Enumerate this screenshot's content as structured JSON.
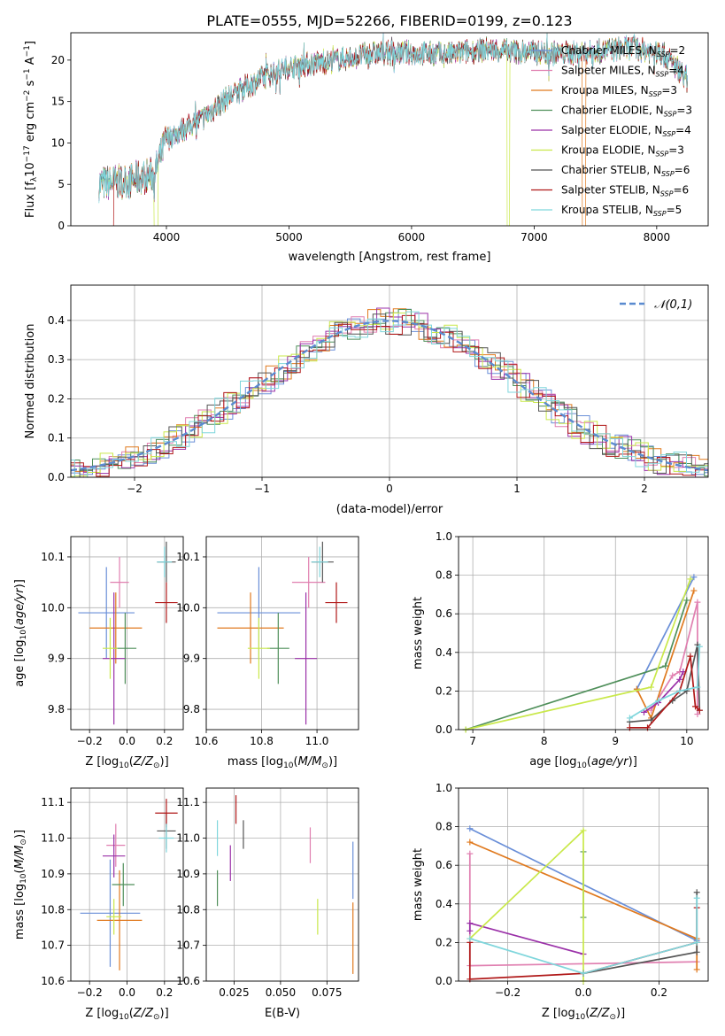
{
  "figure": {
    "title": "PLATE=0555, MJD=52266, FIBERID=0199, z=0.123"
  },
  "models": [
    {
      "name": "Chabrier MILES",
      "nssp": 2,
      "color": "#6a8fd8"
    },
    {
      "name": "Salpeter MILES",
      "nssp": 4,
      "color": "#e07fb0"
    },
    {
      "name": "Kroupa MILES",
      "nssp": 3,
      "color": "#e07a1f"
    },
    {
      "name": "Chabrier ELODIE",
      "nssp": 3,
      "color": "#4f8f5a"
    },
    {
      "name": "Salpeter ELODIE",
      "nssp": 4,
      "color": "#9a30a8"
    },
    {
      "name": "Kroupa ELODIE",
      "nssp": 3,
      "color": "#c9e84a"
    },
    {
      "name": "Chabrier STELIB",
      "nssp": 6,
      "color": "#555555"
    },
    {
      "name": "Salpeter STELIB",
      "nssp": 6,
      "color": "#b01818"
    },
    {
      "name": "Kroupa STELIB",
      "nssp": 5,
      "color": "#7fd6dc"
    }
  ],
  "chart_data": [
    {
      "type": "line",
      "xlabel": "wavelength [Angstrom, rest frame]",
      "ylabel": "Flux [f_λ 10^-17 erg cm^-2 s^-1 A^-1]",
      "xlim": [
        3220,
        8420
      ],
      "ylim": [
        0,
        23.3
      ],
      "xticks": [
        4000,
        5000,
        6000,
        7000,
        8000
      ],
      "yticks": [
        0,
        5,
        10,
        15,
        20
      ],
      "spectrum_start": 3450,
      "spectrum_end": 8250,
      "spectrum_knots": {
        "x": [
          3450,
          3700,
          3900,
          4000,
          4300,
          4500,
          4800,
          5000,
          5300,
          5700,
          6000,
          6300,
          6600,
          6900,
          7200,
          7500,
          7800,
          8050,
          8250
        ],
        "y": [
          5.0,
          5.5,
          6.2,
          10.5,
          13.0,
          15.5,
          18.0,
          19.2,
          19.8,
          20.8,
          20.9,
          20.7,
          21.3,
          21.0,
          20.8,
          21.0,
          21.5,
          20.8,
          17.8
        ]
      },
      "model_dropouts": [
        {
          "model": "Salpeter STELIB",
          "x": [
            3430,
            3570
          ]
        },
        {
          "model": "Kroupa ELODIE",
          "x": [
            3900,
            3930
          ]
        },
        {
          "model": "Kroupa ELODIE",
          "x": [
            6780,
            6800
          ]
        },
        {
          "model": "Kroupa MILES",
          "x": [
            7390,
            7420
          ]
        }
      ],
      "legend_loc": "upper right",
      "grid": false
    },
    {
      "type": "line",
      "xlabel": "(data-model)/error",
      "ylabel": "Normed distribution",
      "xlim": [
        -2.5,
        2.5
      ],
      "ylim": [
        0,
        0.49
      ],
      "xticks": [
        -2,
        -1,
        0,
        1,
        2
      ],
      "yticks": [
        0.0,
        0.1,
        0.2,
        0.3,
        0.4
      ],
      "histogram_bin_width": 0.1,
      "reference_curve": "𝒩(0,1)",
      "reference_color": "#5b8bd0",
      "legend_loc": "upper right",
      "grid": true
    },
    {
      "type": "scatter",
      "xlabel": "Z [log10(Z/Z⊙)]",
      "ylabel": "age [log10(age/yr)]",
      "xlim": [
        -0.3,
        0.3
      ],
      "ylim": [
        9.76,
        10.14
      ],
      "xticks": [
        -0.2,
        0.0,
        0.2
      ],
      "yticks": [
        9.8,
        9.9,
        10.0,
        10.1
      ],
      "points": [
        {
          "model": "Chabrier MILES",
          "x": -0.11,
          "xerr": 0.15,
          "y": 9.99,
          "yerr": 0.09
        },
        {
          "model": "Salpeter MILES",
          "x": -0.04,
          "xerr": 0.05,
          "y": 10.05,
          "yerr": 0.05
        },
        {
          "model": "Kroupa MILES",
          "x": -0.06,
          "xerr": 0.14,
          "y": 9.96,
          "yerr": 0.07
        },
        {
          "model": "Chabrier ELODIE",
          "x": -0.01,
          "xerr": 0.06,
          "y": 9.92,
          "yerr": 0.07
        },
        {
          "model": "Salpeter ELODIE",
          "x": -0.07,
          "xerr": 0.06,
          "y": 9.9,
          "yerr": 0.13
        },
        {
          "model": "Kroupa ELODIE",
          "x": -0.09,
          "xerr": 0.04,
          "y": 9.92,
          "yerr": 0.06
        },
        {
          "model": "Chabrier STELIB",
          "x": 0.21,
          "xerr": 0.05,
          "y": 10.09,
          "yerr": 0.04
        },
        {
          "model": "Salpeter STELIB",
          "x": 0.21,
          "xerr": 0.06,
          "y": 10.01,
          "yerr": 0.04
        },
        {
          "model": "Kroupa STELIB",
          "x": 0.2,
          "xerr": 0.04,
          "y": 10.09,
          "yerr": 0.03
        }
      ],
      "grid": true
    },
    {
      "type": "scatter",
      "xlabel": "mass [log10(M/M⊙)]",
      "ylabel": "",
      "xlim": [
        10.6,
        11.15
      ],
      "ylim": [
        9.76,
        10.14
      ],
      "xticks": [
        10.6,
        10.8,
        11.0
      ],
      "yticks": [
        9.8,
        9.9,
        10.0,
        10.1
      ],
      "points": [
        {
          "model": "Chabrier MILES",
          "x": 10.79,
          "xerr": 0.15,
          "y": 9.99,
          "yerr": 0.09
        },
        {
          "model": "Salpeter MILES",
          "x": 10.97,
          "xerr": 0.06,
          "y": 10.05,
          "yerr": 0.05
        },
        {
          "model": "Kroupa MILES",
          "x": 10.76,
          "xerr": 0.12,
          "y": 9.96,
          "yerr": 0.07
        },
        {
          "model": "Chabrier ELODIE",
          "x": 10.86,
          "xerr": 0.04,
          "y": 9.92,
          "yerr": 0.07
        },
        {
          "model": "Salpeter ELODIE",
          "x": 10.96,
          "xerr": 0.04,
          "y": 9.9,
          "yerr": 0.13
        },
        {
          "model": "Kroupa ELODIE",
          "x": 10.79,
          "xerr": 0.04,
          "y": 9.92,
          "yerr": 0.06
        },
        {
          "model": "Chabrier STELIB",
          "x": 11.02,
          "xerr": 0.04,
          "y": 10.09,
          "yerr": 0.04
        },
        {
          "model": "Salpeter STELIB",
          "x": 11.07,
          "xerr": 0.04,
          "y": 10.01,
          "yerr": 0.04
        },
        {
          "model": "Kroupa STELIB",
          "x": 11.01,
          "xerr": 0.03,
          "y": 10.09,
          "yerr": 0.03
        }
      ],
      "grid": true
    },
    {
      "type": "line",
      "xlabel": "age [log10(age/yr)]",
      "ylabel": "mass weight",
      "xlim": [
        6.8,
        10.3
      ],
      "ylim": [
        0,
        1.0
      ],
      "xticks": [
        7,
        8,
        9,
        10
      ],
      "yticks": [
        0.0,
        0.2,
        0.4,
        0.6,
        0.8,
        1.0
      ],
      "series": [
        {
          "model": "Chabrier MILES",
          "x": [
            9.3,
            10.1
          ],
          "y": [
            0.21,
            0.79
          ]
        },
        {
          "model": "Salpeter MILES",
          "x": [
            9.5,
            9.8,
            9.9,
            10.15,
            10.15
          ],
          "y": [
            0.1,
            0.28,
            0.3,
            0.66,
            0.08
          ]
        },
        {
          "model": "Kroupa MILES",
          "x": [
            9.3,
            9.5,
            10.1
          ],
          "y": [
            0.21,
            0.06,
            0.72
          ]
        },
        {
          "model": "Chabrier ELODIE",
          "x": [
            6.9,
            9.7,
            10.0
          ],
          "y": [
            0.0,
            0.33,
            0.67
          ]
        },
        {
          "model": "Salpeter ELODIE",
          "x": [
            9.4,
            9.6,
            9.9,
            9.95
          ],
          "y": [
            0.09,
            0.14,
            0.26,
            0.3
          ]
        },
        {
          "model": "Kroupa ELODIE",
          "x": [
            6.9,
            9.5,
            10.05
          ],
          "y": [
            0.0,
            0.22,
            0.78
          ]
        },
        {
          "model": "Chabrier STELIB",
          "x": [
            9.2,
            9.5,
            9.8,
            10.0,
            10.15,
            10.18
          ],
          "y": [
            0.04,
            0.05,
            0.15,
            0.2,
            0.44,
            0.1
          ]
        },
        {
          "model": "Salpeter STELIB",
          "x": [
            9.2,
            9.45,
            9.9,
            10.05,
            10.12,
            10.18
          ],
          "y": [
            0.01,
            0.01,
            0.2,
            0.38,
            0.12,
            0.1
          ]
        },
        {
          "model": "Kroupa STELIB",
          "x": [
            9.2,
            9.6,
            9.9,
            10.15,
            10.18
          ],
          "y": [
            0.06,
            0.15,
            0.2,
            0.22,
            0.43
          ]
        }
      ],
      "grid": true
    },
    {
      "type": "scatter",
      "xlabel": "Z [log10(Z/Z⊙)]",
      "ylabel": "mass [log10(M/M⊙)]",
      "xlim": [
        -0.3,
        0.3
      ],
      "ylim": [
        10.6,
        11.14
      ],
      "xticks": [
        -0.2,
        0.0,
        0.2
      ],
      "yticks": [
        10.6,
        10.7,
        10.8,
        10.9,
        11.0,
        11.1
      ],
      "points": [
        {
          "model": "Chabrier MILES",
          "x": -0.09,
          "xerr": 0.16,
          "y": 10.79,
          "yerr": 0.15
        },
        {
          "model": "Salpeter MILES",
          "x": -0.06,
          "xerr": 0.05,
          "y": 10.98,
          "yerr": 0.06
        },
        {
          "model": "Kroupa MILES",
          "x": -0.04,
          "xerr": 0.12,
          "y": 10.77,
          "yerr": 0.14
        },
        {
          "model": "Chabrier ELODIE",
          "x": -0.02,
          "xerr": 0.06,
          "y": 10.87,
          "yerr": 0.06
        },
        {
          "model": "Salpeter ELODIE",
          "x": -0.07,
          "xerr": 0.06,
          "y": 10.95,
          "yerr": 0.06
        },
        {
          "model": "Kroupa ELODIE",
          "x": -0.07,
          "xerr": 0.04,
          "y": 10.78,
          "yerr": 0.05
        },
        {
          "model": "Chabrier STELIB",
          "x": 0.21,
          "xerr": 0.05,
          "y": 11.02,
          "yerr": 0.05
        },
        {
          "model": "Salpeter STELIB",
          "x": 0.21,
          "xerr": 0.06,
          "y": 11.07,
          "yerr": 0.04
        },
        {
          "model": "Kroupa STELIB",
          "x": 0.21,
          "xerr": 0.04,
          "y": 11.0,
          "yerr": 0.04
        }
      ],
      "grid": true
    },
    {
      "type": "scatter",
      "xlabel": "E(B-V)",
      "ylabel": "",
      "xlim": [
        0.01,
        0.092
      ],
      "ylim": [
        10.6,
        11.14
      ],
      "xticks": [
        0.025,
        0.05,
        0.075
      ],
      "yticks": [
        10.6,
        10.7,
        10.8,
        10.9,
        11.0,
        11.1
      ],
      "points": [
        {
          "model": "Chabrier MILES",
          "x": 0.089,
          "xerr": 0.0,
          "y": 10.91,
          "yerr": 0.08
        },
        {
          "model": "Salpeter MILES",
          "x": 0.066,
          "xerr": 0.0,
          "y": 10.98,
          "yerr": 0.05
        },
        {
          "model": "Kroupa MILES",
          "x": 0.089,
          "xerr": 0.0,
          "y": 10.72,
          "yerr": 0.1
        },
        {
          "model": "Chabrier ELODIE",
          "x": 0.016,
          "xerr": 0.0,
          "y": 10.86,
          "yerr": 0.05
        },
        {
          "model": "Salpeter ELODIE",
          "x": 0.023,
          "xerr": 0.0,
          "y": 10.93,
          "yerr": 0.05
        },
        {
          "model": "Kroupa ELODIE",
          "x": 0.07,
          "xerr": 0.0,
          "y": 10.78,
          "yerr": 0.05
        },
        {
          "model": "Chabrier STELIB",
          "x": 0.03,
          "xerr": 0.0,
          "y": 11.01,
          "yerr": 0.04
        },
        {
          "model": "Salpeter STELIB",
          "x": 0.026,
          "xerr": 0.0,
          "y": 11.08,
          "yerr": 0.04
        },
        {
          "model": "Kroupa STELIB",
          "x": 0.016,
          "xerr": 0.0,
          "y": 11.0,
          "yerr": 0.05
        }
      ],
      "grid": true
    },
    {
      "type": "line",
      "xlabel": "Z [log10(Z/Z⊙)]",
      "ylabel": "mass weight",
      "xlim": [
        -0.33,
        0.33
      ],
      "ylim": [
        0,
        1.0
      ],
      "xticks": [
        -0.2,
        0.0,
        0.2
      ],
      "yticks": [
        0.0,
        0.2,
        0.4,
        0.6,
        0.8,
        1.0
      ],
      "series": [
        {
          "model": "Chabrier MILES",
          "x": [
            -0.3,
            0.3
          ],
          "y": [
            0.79,
            0.21
          ]
        },
        {
          "model": "Salpeter MILES",
          "x": [
            -0.3,
            -0.3,
            0.3
          ],
          "y": [
            0.66,
            0.08,
            0.1
          ]
        },
        {
          "model": "Kroupa MILES",
          "x": [
            -0.3,
            0.3,
            0.3
          ],
          "y": [
            0.72,
            0.22,
            0.06
          ]
        },
        {
          "model": "Chabrier ELODIE",
          "x": [
            0.0,
            0.0
          ],
          "y": [
            0.67,
            0.33
          ]
        },
        {
          "model": "Salpeter ELODIE",
          "x": [
            -0.3,
            -0.3,
            0.0
          ],
          "y": [
            0.26,
            0.3,
            0.14
          ]
        },
        {
          "model": "Kroupa ELODIE",
          "x": [
            -0.3,
            0.0,
            0.0
          ],
          "y": [
            0.22,
            0.78,
            0.0
          ]
        },
        {
          "model": "Chabrier STELIB",
          "x": [
            0.0,
            0.3,
            0.3
          ],
          "y": [
            0.04,
            0.15,
            0.46
          ]
        },
        {
          "model": "Salpeter STELIB",
          "x": [
            -0.3,
            -0.3,
            0.0,
            0.3,
            0.3
          ],
          "y": [
            0.2,
            0.01,
            0.04,
            0.2,
            0.38
          ]
        },
        {
          "model": "Kroupa STELIB",
          "x": [
            -0.3,
            0.0,
            0.3,
            0.3
          ],
          "y": [
            0.22,
            0.04,
            0.2,
            0.43
          ]
        }
      ],
      "grid": true
    }
  ]
}
